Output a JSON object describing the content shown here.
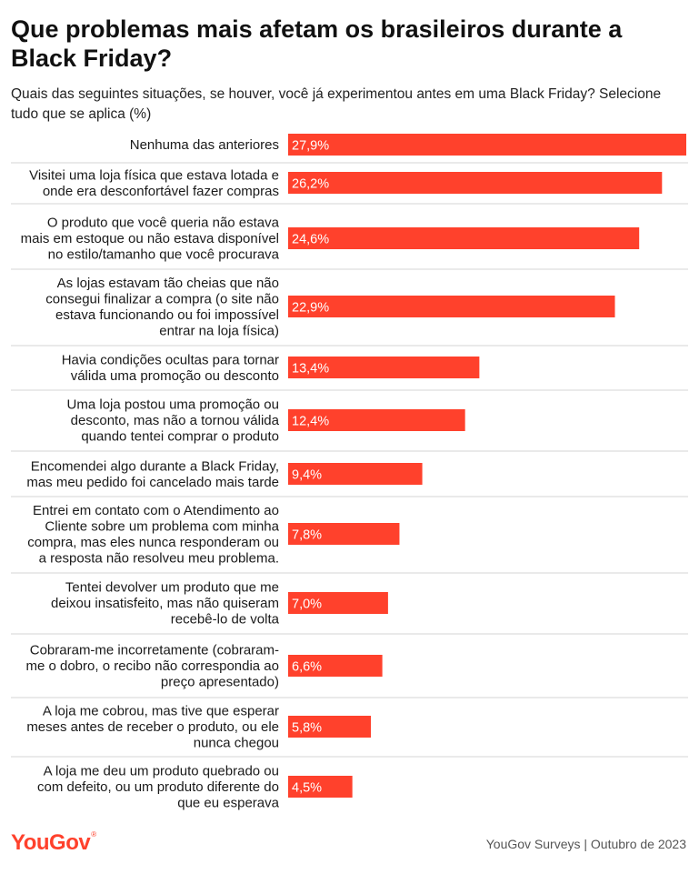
{
  "title": "Que problemas mais afetam os brasileiros durante a Black Friday?",
  "subtitle": "Quais das seguintes situações, se houver, você já experimentou antes em uma Black Friday? Selecione tudo que se aplica (%)",
  "colors": {
    "bar": "#ff412c",
    "bar_label": "#ffffff",
    "text": "#1a1a1a",
    "separator": "#d6d6d6",
    "logo": "#ff412c"
  },
  "chart_data": {
    "type": "bar",
    "orientation": "horizontal",
    "title": "Que problemas mais afetam os brasileiros durante a Black Friday?",
    "subtitle": "Quais das seguintes situações, se houver, você já experimentou antes em uma Black Friday? Selecione tudo que se aplica (%)",
    "unit": "%",
    "xlim": [
      0,
      27.9
    ],
    "grid": false,
    "categories": [
      [
        "Nenhuma das anteriores"
      ],
      [
        "Visitei uma loja física que estava lotada e",
        "onde era desconfortável fazer compras"
      ],
      [
        "O produto que você queria não estava",
        "mais em estoque ou não estava disponível",
        "no estilo/tamanho que você procurava"
      ],
      [
        "As lojas estavam tão cheias que não",
        "consegui finalizar a compra (o site não",
        "estava funcionando ou foi impossível",
        "entrar na loja física)"
      ],
      [
        "Havia condições ocultas para tornar",
        "válida uma promoção ou desconto"
      ],
      [
        "Uma loja postou uma promoção ou",
        "desconto, mas não a tornou válida",
        "quando tentei comprar o produto"
      ],
      [
        "Encomendei algo durante a Black Friday,",
        "mas meu pedido foi cancelado mais tarde"
      ],
      [
        "Entrei em contato com o Atendimento ao",
        "Cliente sobre um problema com minha",
        "compra, mas eles nunca responderam ou",
        "a resposta não resolveu meu problema."
      ],
      [
        "Tentei devolver um produto que me",
        "deixou insatisfeito, mas não quiseram",
        "recebê-lo de volta"
      ],
      [
        "Cobraram-me incorretamente (cobraram-",
        "me o dobro, o recibo não correspondia ao",
        "preço apresentado)"
      ],
      [
        "A loja me cobrou, mas tive que esperar",
        "meses antes de receber o produto, ou ele",
        "nunca chegou"
      ],
      [
        "A loja me deu um produto quebrado ou",
        "com defeito, ou um produto diferente do",
        "que eu esperava"
      ]
    ],
    "values": [
      27.9,
      26.2,
      24.6,
      22.9,
      13.4,
      12.4,
      9.4,
      7.8,
      7.0,
      6.6,
      5.8,
      4.5
    ],
    "value_labels": [
      "27,9%",
      "26,2%",
      "24,6%",
      "22,9%",
      "13,4%",
      "12,4%",
      "9,4%",
      "7,8%",
      "7,0%",
      "6,6%",
      "5,8%",
      "4,5%"
    ]
  },
  "footer": {
    "logo": "YouGov",
    "source": "YouGov Surveys | Outubro de 2023"
  }
}
